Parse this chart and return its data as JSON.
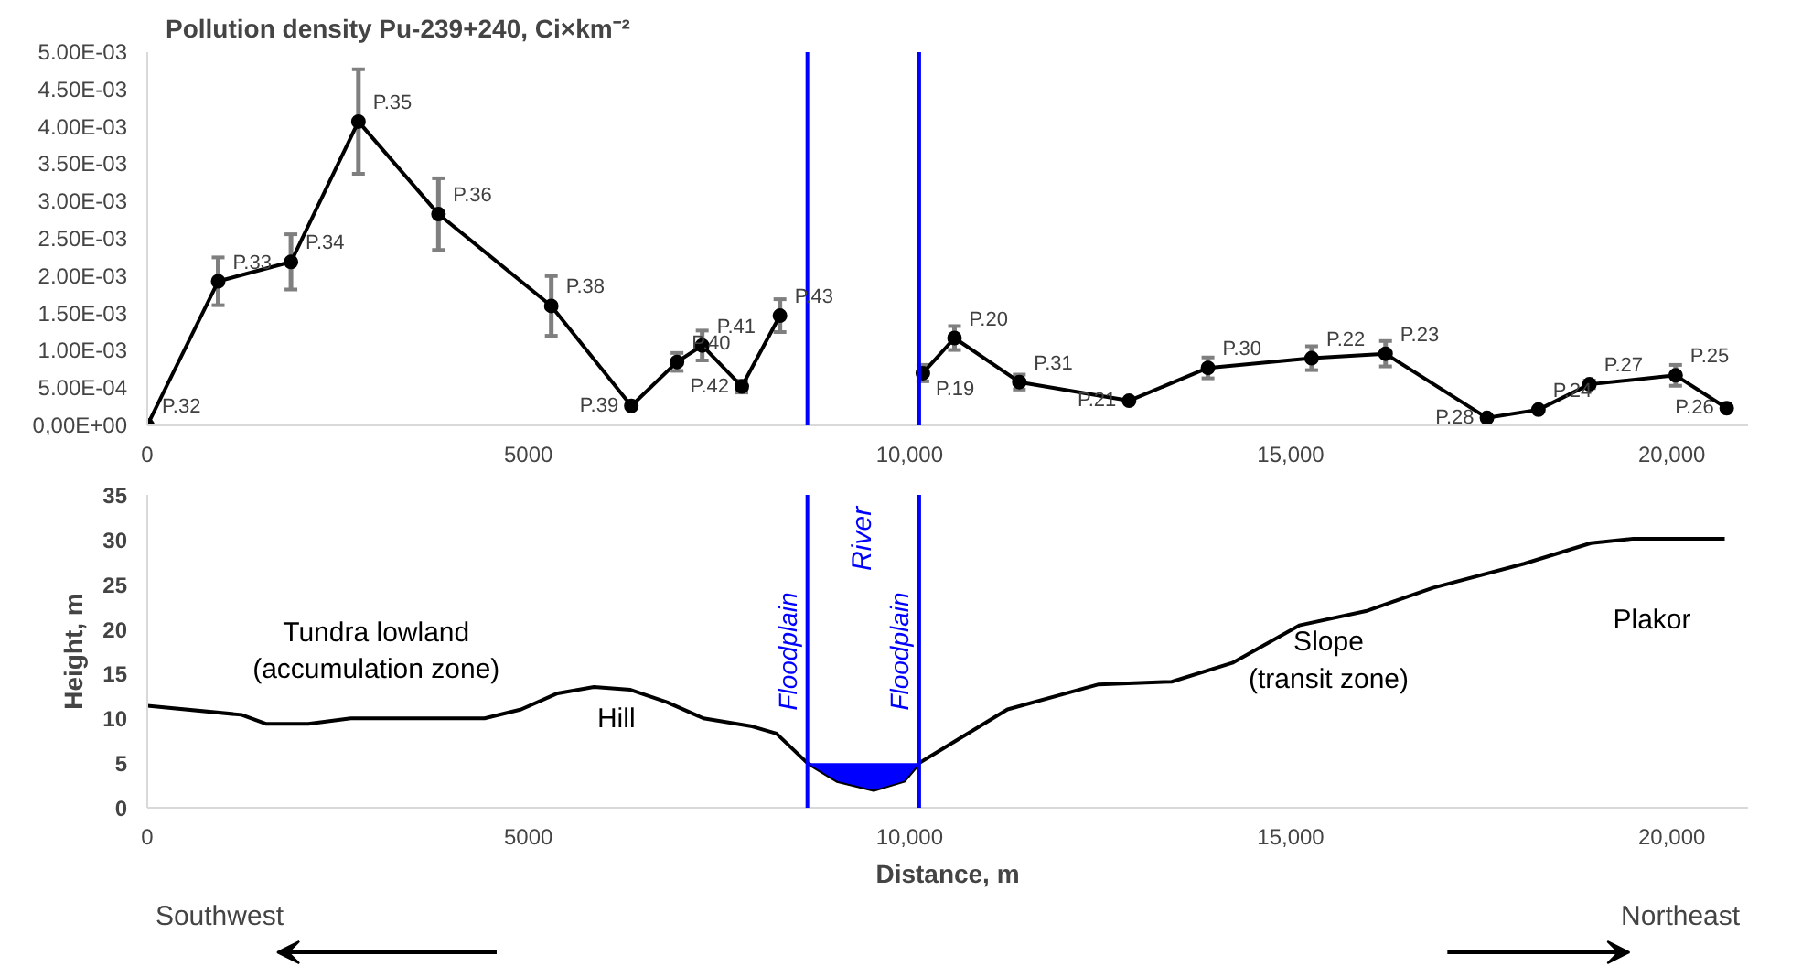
{
  "chart_data": [
    {
      "type": "line",
      "title": "Pollution density Pu-239+240, Ci×km⁻²",
      "marker": "circle",
      "grid": false,
      "x": [
        0,
        930,
        1885,
        2770,
        3820,
        5300,
        6350,
        6950,
        7280,
        7800,
        8300,
        9200,
        10175,
        10590,
        11440,
        12880,
        13915,
        15275,
        16245,
        17575,
        18250,
        18920,
        20050,
        20720
      ],
      "series": [
        {
          "color": "#000000",
          "values": [
            0,
            0.00193,
            0.00219,
            0.00407,
            0.00283,
            0.0016,
            0.00026,
            0.00085,
            0.00107,
            0.00052,
            0.00147,
            null,
            0.0007,
            0.00117,
            0.00058,
            0.00033,
            0.00077,
            0.0009,
            0.00096,
            0.0001,
            0.00021,
            0.00055,
            0.00067,
            0.00023
          ],
          "errors": [
            null,
            0.00032,
            0.00037,
            0.0007,
            0.00048,
            0.0004,
            null,
            0.00012,
            0.0002,
            8e-05,
            0.00022,
            null,
            0.00011,
            0.00016,
            0.0001,
            null,
            0.00014,
            0.00016,
            0.00017,
            null,
            null,
            5e-05,
            0.00014,
            null
          ]
        }
      ],
      "xlim": [
        0,
        21000
      ],
      "xticks": [
        0,
        5000,
        {
          "value": 10000,
          "label": "10,000"
        },
        {
          "value": 15000,
          "label": "15,000"
        },
        {
          "value": 20000,
          "label": "20,000"
        }
      ],
      "ylim": [
        0,
        0.005
      ],
      "yticks": [
        {
          "value": 0,
          "label": "0,00E+00"
        },
        {
          "value": 0.0005,
          "label": "5.00E-04"
        },
        {
          "value": 0.001,
          "label": "1.00E-03"
        },
        {
          "value": 0.0015,
          "label": "1.50E-03"
        },
        {
          "value": 0.002,
          "label": "2.00E-03"
        },
        {
          "value": 0.0025,
          "label": "2.50E-03"
        },
        {
          "value": 0.003,
          "label": "3.00E-03"
        },
        {
          "value": 0.0035,
          "label": "3.50E-03"
        },
        {
          "value": 0.004,
          "label": "4.00E-03"
        },
        {
          "value": 0.0045,
          "label": "4.50E-03"
        },
        {
          "value": 0.005,
          "label": "5.00E-03"
        }
      ],
      "ref_lines": [
        {
          "axis": "x",
          "value": 8660,
          "color": "#0000ff"
        },
        {
          "axis": "x",
          "value": 10127,
          "color": "#0000ff"
        }
      ],
      "annotations": [
        {
          "text": "P.32",
          "x": 0,
          "y": 0
        },
        {
          "text": "P.33",
          "x": 930,
          "y": 0.00193
        },
        {
          "text": "P.34",
          "x": 1885,
          "y": 0.00219
        },
        {
          "text": "P.35",
          "x": 2770,
          "y": 0.00407
        },
        {
          "text": "P.36",
          "x": 3820,
          "y": 0.00283
        },
        {
          "text": "P.38",
          "x": 5300,
          "y": 0.0016
        },
        {
          "text": "P.39",
          "x": 6350,
          "y": 0.00026
        },
        {
          "text": "P.40",
          "x": 6950,
          "y": 0.00085
        },
        {
          "text": "P.41",
          "x": 7280,
          "y": 0.00107
        },
        {
          "text": "P.42",
          "x": 7800,
          "y": 0.00052
        },
        {
          "text": "P.43",
          "x": 8300,
          "y": 0.00147
        },
        {
          "text": "P.19",
          "x": 10175,
          "y": 0.0007
        },
        {
          "text": "P.20",
          "x": 10590,
          "y": 0.00117
        },
        {
          "text": "P.31",
          "x": 11440,
          "y": 0.00058
        },
        {
          "text": "P.21",
          "x": 12880,
          "y": 0.00033
        },
        {
          "text": "P.30",
          "x": 13915,
          "y": 0.00077
        },
        {
          "text": "P.22",
          "x": 15275,
          "y": 0.0009
        },
        {
          "text": "P.23",
          "x": 16245,
          "y": 0.00096
        },
        {
          "text": "P.28",
          "x": 17575,
          "y": 0.0001
        },
        {
          "text": "P.24",
          "x": 18250,
          "y": 0.00021
        },
        {
          "text": "P.27",
          "x": 18920,
          "y": 0.00055
        },
        {
          "text": "P.25",
          "x": 20050,
          "y": 0.00067
        },
        {
          "text": "P.26",
          "x": 20720,
          "y": 0.00023
        }
      ]
    },
    {
      "type": "line",
      "xlabel": "Distance, m",
      "ylabel": "Height, m",
      "grid": false,
      "x": [
        0,
        1236,
        1555,
        2113,
        2670,
        4425,
        4904,
        5382,
        5860,
        6340,
        6818,
        7297,
        7935,
        8254,
        8660,
        9051,
        9530,
        9928,
        10127,
        11285,
        12481,
        13438,
        14234,
        15112,
        15988,
        16866,
        18062,
        18939,
        19498,
        20694
      ],
      "series": [
        {
          "color": "#000000",
          "values": [
            11.4,
            10.4,
            9.4,
            9.4,
            10.0,
            10.0,
            11.0,
            12.8,
            13.5,
            13.2,
            11.8,
            10.0,
            9.1,
            8.3,
            5.0,
            3.0,
            2.0,
            3.0,
            5.0,
            11.0,
            13.8,
            14.1,
            16.2,
            20.4,
            22.0,
            24.6,
            27.3,
            29.6,
            30.1,
            30.1
          ]
        },
        {
          "type": "area",
          "color": "#0000ff",
          "x": [
            8660,
            9051,
            9530,
            9928,
            10127
          ],
          "values": [
            5,
            5,
            5,
            5,
            5
          ]
        }
      ],
      "xlim": [
        0,
        21000
      ],
      "xticks": [
        0,
        5000,
        {
          "value": 10000,
          "label": "10,000"
        },
        {
          "value": 15000,
          "label": "15,000"
        },
        {
          "value": 20000,
          "label": "20,000"
        }
      ],
      "ylim": [
        0,
        35
      ],
      "yticks": [
        0,
        5,
        10,
        15,
        20,
        25,
        30,
        35
      ],
      "ref_lines": [
        {
          "axis": "x",
          "value": 8660,
          "label": "Floodplain",
          "color": "#0000ff"
        },
        {
          "axis": "x",
          "value": 10127,
          "label": "Floodplain",
          "color": "#0000ff"
        }
      ],
      "annotations": [
        "Tundra lowland\n(accumulation zone)",
        "Hill",
        "River",
        "Slope\n(transit zone)",
        "Plakor",
        "Southwest",
        "Northeast"
      ]
    }
  ]
}
